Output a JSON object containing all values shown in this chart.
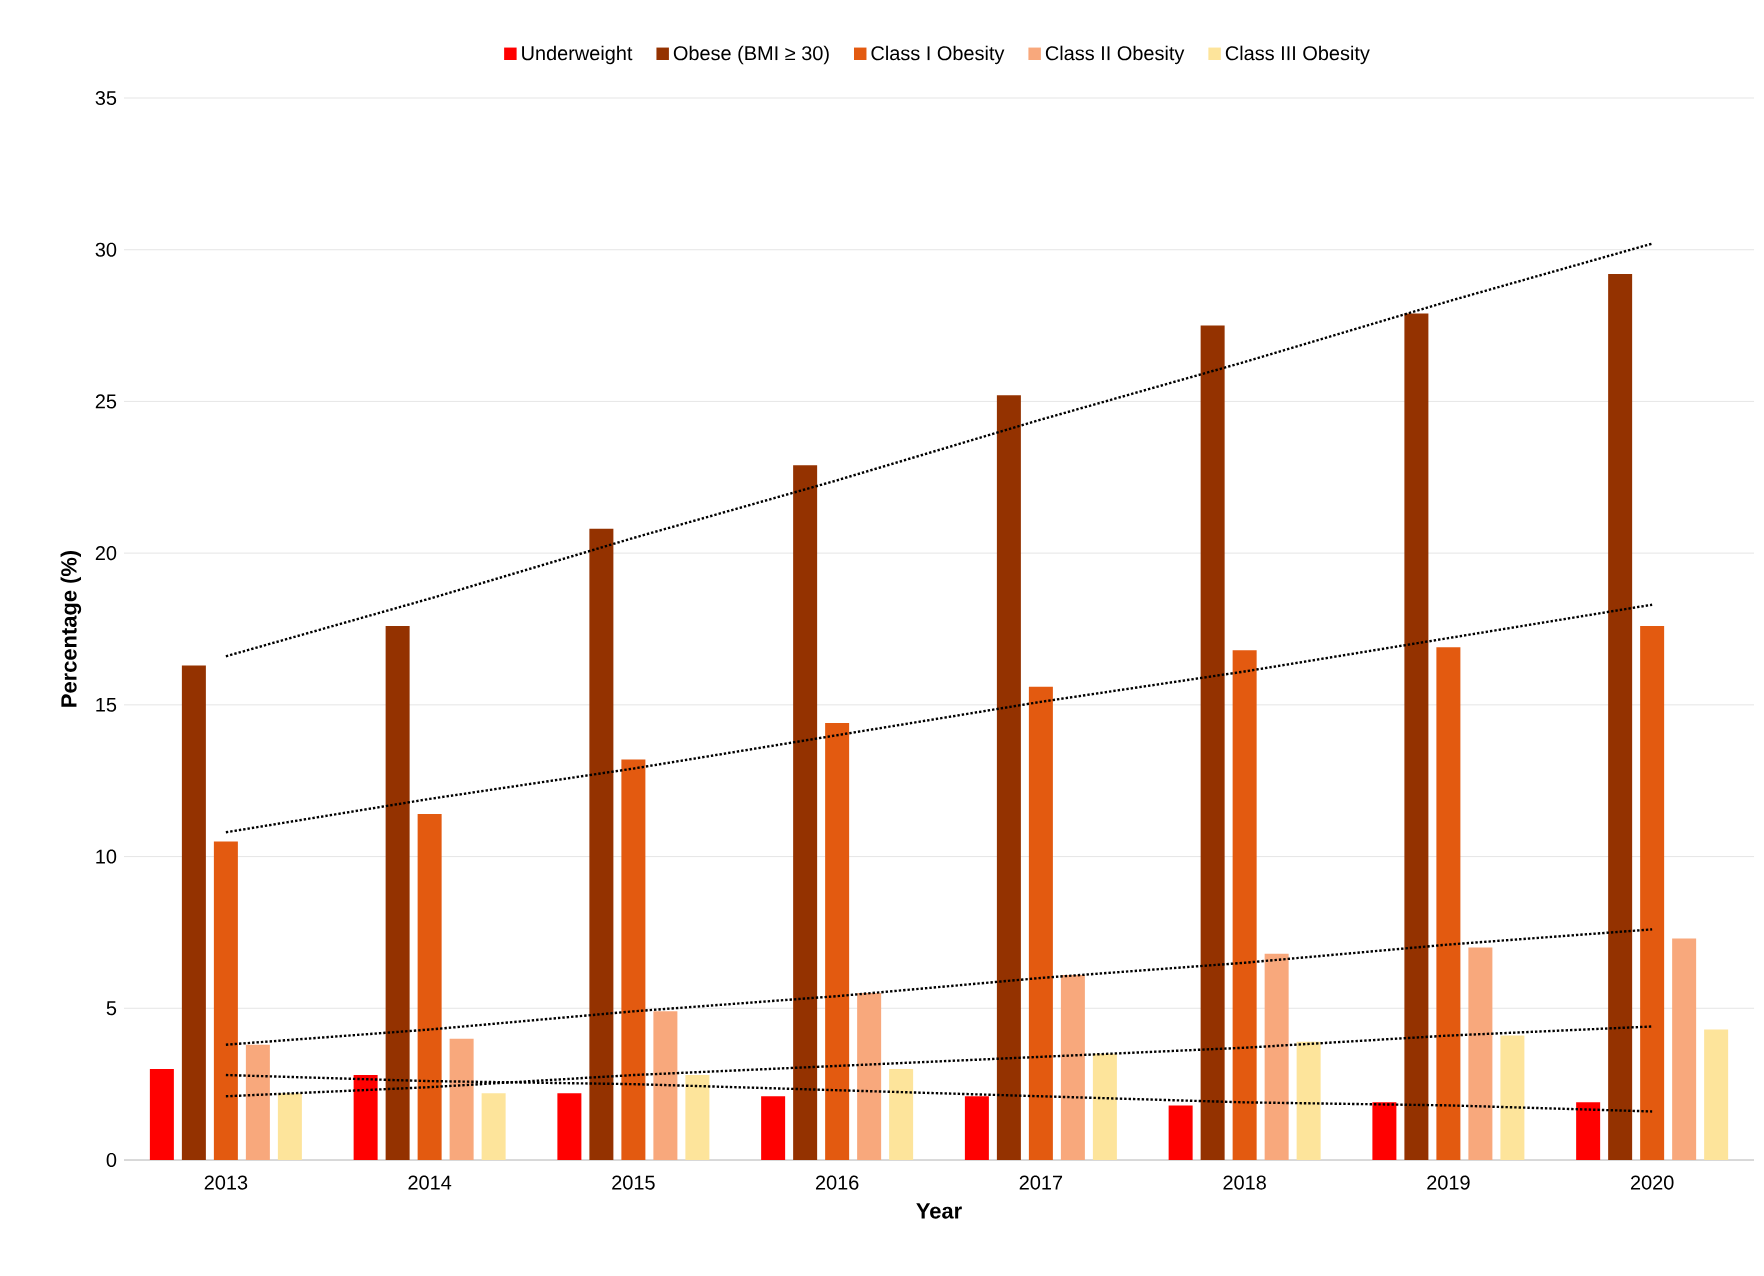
{
  "chart_data": {
    "type": "bar",
    "xlabel": "Year",
    "ylabel": "Percentage (%)",
    "categories": [
      "2013",
      "2014",
      "2015",
      "2016",
      "2017",
      "2018",
      "2019",
      "2020"
    ],
    "ylim": [
      0,
      35
    ],
    "yticks": [
      0,
      5,
      10,
      15,
      20,
      25,
      30,
      35
    ],
    "grid": "y",
    "legend": "top",
    "series": [
      {
        "name": "Underweight",
        "color": "#ff0000",
        "values": [
          3.0,
          2.8,
          2.2,
          2.1,
          2.1,
          1.8,
          1.9,
          1.9
        ]
      },
      {
        "name": "Obese (BMI ≥ 30)",
        "color": "#943200",
        "values": [
          16.3,
          17.6,
          20.8,
          22.9,
          25.2,
          27.5,
          27.9,
          29.2
        ]
      },
      {
        "name": "Class I Obesity",
        "color": "#e35a10",
        "values": [
          10.5,
          11.4,
          13.2,
          14.4,
          15.6,
          16.8,
          16.9,
          17.6
        ]
      },
      {
        "name": "Class II Obesity",
        "color": "#f8a87c",
        "values": [
          3.8,
          4.0,
          4.9,
          5.5,
          6.1,
          6.8,
          7.0,
          7.3
        ]
      },
      {
        "name": "Class III Obesity",
        "color": "#fde49b",
        "values": [
          2.2,
          2.2,
          2.8,
          3.0,
          3.5,
          3.9,
          4.1,
          4.3
        ]
      },
      {
        "type": "line",
        "color": "#000000",
        "line_style": "dotted",
        "values": [
          16.6,
          18.5,
          20.5,
          22.4,
          24.4,
          26.3,
          28.3,
          30.2
        ]
      },
      {
        "type": "line",
        "color": "#000000",
        "line_style": "dotted",
        "values": [
          10.8,
          11.9,
          12.9,
          14.0,
          15.1,
          16.1,
          17.2,
          18.3
        ]
      },
      {
        "type": "line",
        "color": "#000000",
        "line_style": "dotted",
        "values": [
          3.8,
          4.3,
          4.9,
          5.4,
          6.0,
          6.5,
          7.1,
          7.6
        ]
      },
      {
        "type": "line",
        "color": "#000000",
        "line_style": "dotted",
        "values": [
          2.1,
          2.4,
          2.8,
          3.1,
          3.4,
          3.7,
          4.1,
          4.4
        ]
      },
      {
        "type": "line",
        "color": "#000000",
        "line_style": "dotted",
        "values": [
          2.8,
          2.6,
          2.5,
          2.3,
          2.1,
          1.9,
          1.8,
          1.6
        ]
      }
    ]
  }
}
